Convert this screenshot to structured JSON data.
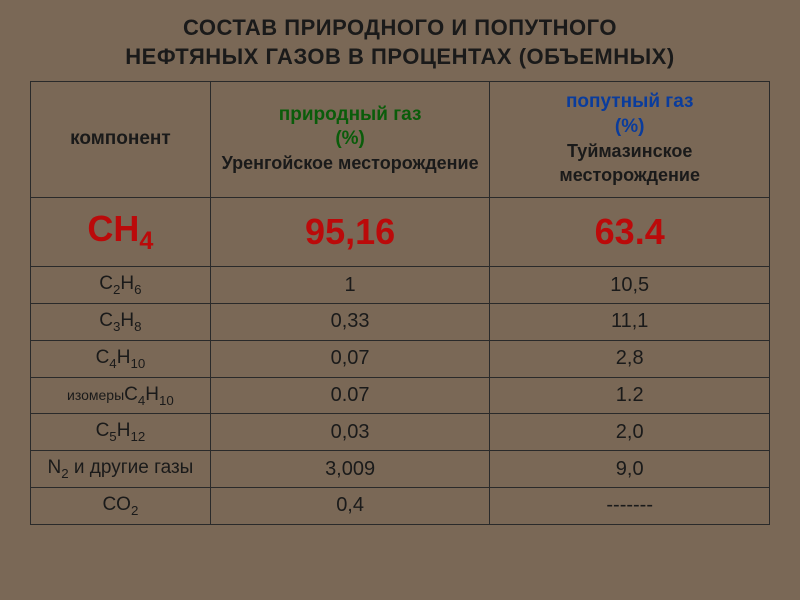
{
  "title_line1": "СОСТАВ ПРИРОДНОГО И ПОПУТНОГО",
  "title_line2": "НЕФТЯНЫХ ГАЗОВ В ПРОЦЕНТАХ (ОБЪЕМНЫХ)",
  "table": {
    "header": {
      "component": "компонент",
      "natural_gas": "природный газ",
      "natural_pct": "(%)",
      "natural_field": "Уренгойское месторождение",
      "associated_gas": "попутный газ",
      "associated_pct": "(%)",
      "associated_field": "Туймазинское месторождение"
    },
    "highlight": {
      "formula_base": "CH",
      "formula_sub": "4",
      "natural": "95,16",
      "associated": "63.4"
    },
    "rows": [
      {
        "formula_base": "C",
        "formula_sub1": "2",
        "formula_mid": "H",
        "formula_sub2": "6",
        "natural": "1",
        "associated": "10,5"
      },
      {
        "formula_base": "C",
        "formula_sub1": "3",
        "formula_mid": "H",
        "formula_sub2": "8",
        "natural": "0,33",
        "associated": "11,1"
      },
      {
        "formula_base": "C",
        "formula_sub1": "4",
        "formula_mid": "H",
        "formula_sub2": "10",
        "natural": "0,07",
        "associated": "2,8"
      },
      {
        "prefix": "изомеры",
        "formula_base": "C",
        "formula_sub1": "4",
        "formula_mid": "H",
        "formula_sub2": "10",
        "natural": "0.07",
        "associated": "1.2"
      },
      {
        "formula_base": "C",
        "formula_sub1": "5",
        "formula_mid": "H",
        "formula_sub2": "12",
        "natural": "0,03",
        "associated": "2,0"
      },
      {
        "formula_base": "N",
        "formula_sub1": "2",
        "suffix": " и другие газы",
        "natural": "3,009",
        "associated": "9,0"
      },
      {
        "formula_base": "CO",
        "formula_sub1": "2",
        "natural": "0,4",
        "associated": "-------"
      }
    ]
  },
  "style": {
    "background_color": "#7a6856",
    "border_color": "#2a2a2a",
    "highlight_color": "#bb0a0a",
    "natural_header_color": "#0a5c0a",
    "associated_header_color": "#0a3c9c",
    "text_color": "#1a1a1a",
    "title_fontsize": 22,
    "header_fontsize": 19,
    "highlight_fontsize": 36,
    "body_fontsize": 19
  }
}
